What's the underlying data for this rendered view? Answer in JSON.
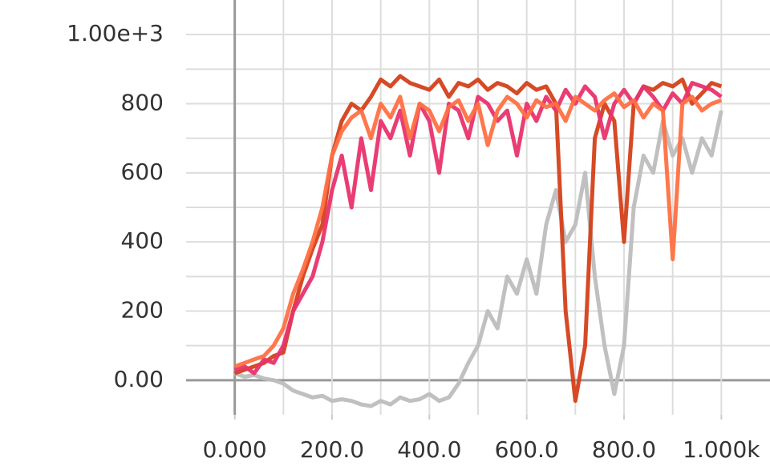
{
  "chart_data": {
    "type": "line",
    "x": [
      0,
      20,
      40,
      60,
      80,
      100,
      120,
      140,
      160,
      180,
      200,
      220,
      240,
      260,
      280,
      300,
      320,
      340,
      360,
      380,
      400,
      420,
      440,
      460,
      480,
      500,
      520,
      540,
      560,
      580,
      600,
      620,
      640,
      660,
      680,
      700,
      720,
      740,
      760,
      780,
      800,
      820,
      840,
      860,
      880,
      900,
      920,
      940,
      960,
      980,
      1000
    ],
    "series": [
      {
        "color": "#bdbdbd",
        "values": [
          20,
          10,
          15,
          5,
          0,
          -10,
          -30,
          -40,
          -50,
          -45,
          -60,
          -55,
          -60,
          -70,
          -75,
          -60,
          -70,
          -50,
          -60,
          -55,
          -40,
          -60,
          -50,
          -10,
          50,
          100,
          200,
          150,
          300,
          250,
          350,
          250,
          450,
          550,
          400,
          450,
          600,
          300,
          100,
          -40,
          100,
          500,
          650,
          600,
          750,
          650,
          700,
          600,
          700,
          650,
          780
        ]
      },
      {
        "color": "#d4401a",
        "values": [
          20,
          30,
          40,
          50,
          70,
          80,
          200,
          300,
          380,
          450,
          650,
          750,
          800,
          780,
          820,
          870,
          850,
          880,
          860,
          850,
          840,
          870,
          820,
          860,
          850,
          870,
          840,
          860,
          850,
          830,
          860,
          840,
          850,
          800,
          200,
          -60,
          100,
          700,
          800,
          750,
          400,
          800,
          850,
          840,
          860,
          850,
          870,
          800,
          830,
          860,
          850
        ]
      },
      {
        "color": "#e8336d",
        "values": [
          30,
          40,
          20,
          60,
          50,
          100,
          200,
          250,
          300,
          400,
          550,
          650,
          500,
          700,
          550,
          750,
          700,
          780,
          650,
          800,
          750,
          600,
          800,
          780,
          700,
          820,
          800,
          750,
          780,
          650,
          800,
          750,
          820,
          780,
          840,
          800,
          850,
          820,
          700,
          800,
          840,
          800,
          850,
          820,
          780,
          830,
          800,
          860,
          850,
          840,
          820
        ]
      },
      {
        "color": "#ff7043",
        "values": [
          40,
          50,
          60,
          70,
          100,
          150,
          250,
          320,
          400,
          500,
          650,
          720,
          760,
          780,
          700,
          800,
          760,
          820,
          700,
          800,
          780,
          720,
          790,
          810,
          750,
          800,
          680,
          780,
          820,
          800,
          760,
          810,
          790,
          800,
          750,
          820,
          800,
          780,
          810,
          830,
          790,
          810,
          760,
          800,
          780,
          350,
          800,
          820,
          780,
          800,
          810
        ]
      }
    ],
    "xlim": [
      -100,
      1100
    ],
    "ylim": [
      -100,
      1100
    ],
    "xticks": [
      {
        "value": 0,
        "label": "0.000"
      },
      {
        "value": 200,
        "label": "200.0"
      },
      {
        "value": 400,
        "label": "400.0"
      },
      {
        "value": 600,
        "label": "600.0"
      },
      {
        "value": 800,
        "label": "800.0"
      },
      {
        "value": 1000,
        "label": "1.000k"
      }
    ],
    "yticks": [
      {
        "value": 0,
        "label": "0.00"
      },
      200,
      400,
      600,
      800,
      {
        "value": 1000,
        "label": "1.00e+3"
      }
    ],
    "grid": true
  }
}
